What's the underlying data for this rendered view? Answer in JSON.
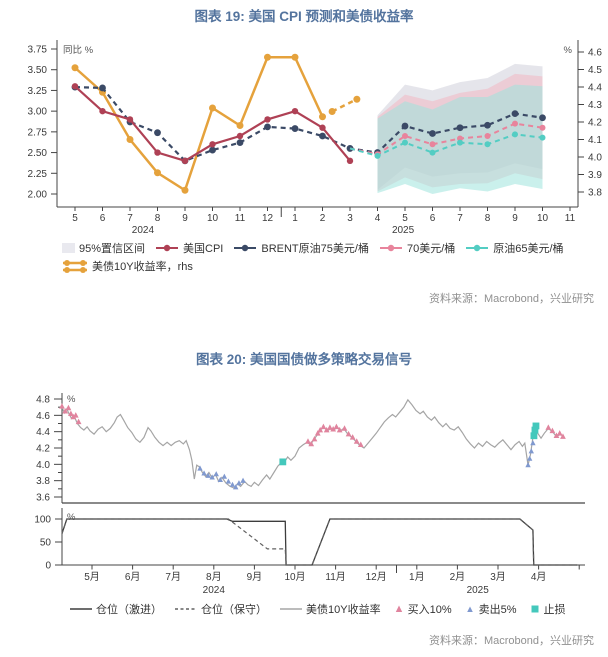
{
  "colors": {
    "title_blue": "#54749E",
    "axis": "#444444",
    "crimson": "#AF4155",
    "navy": "#3B4A66",
    "pink": "#E8849C",
    "teal": "#53CDC3",
    "orange": "#E5A23C",
    "band_gray": "#D4D4DE",
    "band_pink": "#F4B3C0",
    "band_teal": "#9FE4DC",
    "band_legend": "#E9E9EF",
    "yield_gray": "#A5A5A5",
    "buy_pink": "#E0849E",
    "sell_blue": "#8099CF",
    "stop_teal": "#44C8BC",
    "pos_solid": "#3D3D3D",
    "pos_dashed": "#606060",
    "source_gray": "#909090"
  },
  "chart_data": {
    "c19": {
      "type": "line",
      "title": "图表 19: 美国 CPI 预测和美债收益率",
      "source": "资料来源：Macrobond，兴业研究",
      "left_axis": {
        "label": "同比 %",
        "min": 2.0,
        "max": 3.75,
        "step": 0.25
      },
      "right_axis": {
        "label": "%",
        "min": 3.8,
        "max": 4.6,
        "step": 0.1
      },
      "x_labels": [
        "5",
        "6",
        "7",
        "8",
        "9",
        "10",
        "11",
        "12",
        "1",
        "2",
        "3",
        "4",
        "5",
        "6",
        "7",
        "8",
        "9",
        "10",
        "11"
      ],
      "year_labels": [
        {
          "text": "2024",
          "index": 2.47
        },
        {
          "text": "2025",
          "index": 11.93
        }
      ],
      "band": {
        "x_indices": [
          11,
          12,
          13,
          14,
          15,
          16,
          17
        ],
        "gray_lo": [
          2.05,
          2.32,
          2.21,
          2.25,
          2.26,
          2.37,
          2.3
        ],
        "gray_hi": [
          2.95,
          3.32,
          3.25,
          3.35,
          3.4,
          3.57,
          3.54
        ],
        "pink_lo": [
          2.03,
          2.2,
          2.08,
          2.12,
          2.13,
          2.25,
          2.18
        ],
        "pink_hi": [
          2.93,
          3.2,
          3.12,
          3.22,
          3.27,
          3.45,
          3.42
        ],
        "teal_lo": [
          2.01,
          2.12,
          2.0,
          2.07,
          2.03,
          2.12,
          2.06
        ],
        "teal_hi": [
          2.91,
          3.12,
          3.02,
          3.17,
          3.17,
          3.32,
          3.3
        ]
      },
      "series": [
        {
          "id": "ust10y",
          "name": "美债10Y收益率，rhs",
          "colorKey": "orange",
          "style": "solid",
          "axis": "right",
          "width": 2.5,
          "dot": 3.5,
          "x": [
            0,
            1,
            2,
            3,
            4,
            5,
            6,
            7,
            8,
            9
          ],
          "y": [
            4.51,
            4.37,
            4.1,
            3.91,
            3.81,
            4.28,
            4.18,
            4.57,
            4.57,
            4.23
          ]
        },
        {
          "id": "ust10y_fcst",
          "name": "美债10Y收益率（虚线段）",
          "colorKey": "orange",
          "style": "dashed",
          "axis": "right",
          "width": 2.5,
          "dot": 3.5,
          "x": [
            9.35,
            10.25
          ],
          "y": [
            4.26,
            4.33
          ]
        },
        {
          "id": "brent75",
          "name": "BRENT原油75美元/桶",
          "colorKey": "navy",
          "style": "dashed",
          "axis": "left",
          "width": 2.2,
          "dot": 3.4,
          "x": [
            0,
            1,
            2,
            3,
            4,
            5,
            6,
            7,
            8,
            9,
            10,
            11,
            12,
            13,
            14,
            15,
            16,
            17
          ],
          "y": [
            3.29,
            3.28,
            2.87,
            2.74,
            2.4,
            2.53,
            2.62,
            2.81,
            2.79,
            2.7,
            2.55,
            2.5,
            2.82,
            2.73,
            2.8,
            2.83,
            2.97,
            2.92
          ]
        },
        {
          "id": "oil70",
          "name": "70美元/桶",
          "colorKey": "pink",
          "style": "dashed",
          "axis": "left",
          "width": 2,
          "dot": 3,
          "skip_first_marker": true,
          "x": [
            10,
            11,
            12,
            13,
            14,
            15,
            16,
            17
          ],
          "y": [
            2.55,
            2.48,
            2.7,
            2.6,
            2.67,
            2.7,
            2.85,
            2.8
          ]
        },
        {
          "id": "oil65",
          "name": "原油65美元/桶",
          "colorKey": "teal",
          "style": "dashed",
          "axis": "left",
          "width": 2,
          "dot": 3,
          "skip_first_marker": true,
          "x": [
            10,
            11,
            12,
            13,
            14,
            15,
            16,
            17
          ],
          "y": [
            2.55,
            2.46,
            2.62,
            2.5,
            2.62,
            2.6,
            2.72,
            2.68
          ]
        },
        {
          "id": "cpi",
          "name": "美国CPI",
          "colorKey": "crimson",
          "style": "solid",
          "axis": "left",
          "width": 2.2,
          "dot": 3.2,
          "x": [
            0,
            1,
            2,
            3,
            4,
            5,
            6,
            7,
            8,
            9,
            10
          ],
          "y": [
            3.3,
            3.0,
            2.9,
            2.5,
            2.4,
            2.6,
            2.7,
            2.9,
            3.0,
            2.8,
            2.4
          ]
        }
      ],
      "legend": [
        {
          "label": "95%置信区间"
        },
        {
          "label": "美国CPI"
        },
        {
          "label": "BRENT原油75美元/桶"
        },
        {
          "label": "70美元/桶"
        },
        {
          "label": "原油65美元/桶"
        }
      ],
      "legend_rhs": {
        "label": "美债10Y收益率，rhs"
      }
    },
    "c20": {
      "type": "line",
      "title": "图表 20: 美国国债做多策略交易信号",
      "source": "资料来源：Macrobond，兴业研究",
      "top_axis": {
        "label": "%",
        "min": 3.6,
        "max": 4.8,
        "step": 0.2
      },
      "bottom_axis": {
        "label": "%",
        "ticks": [
          0,
          50,
          100
        ]
      },
      "x_labels": [
        "5月",
        "6月",
        "7月",
        "8月",
        "9月",
        "10月",
        "11月",
        "12月",
        "1月",
        "2月",
        "3月",
        "4月"
      ],
      "year_labels": [
        {
          "text": "2024",
          "index": 3.0
        },
        {
          "text": "2025",
          "index": 9.5
        }
      ],
      "yield_line": [
        [
          -0.74,
          4.7
        ],
        [
          -0.68,
          4.63
        ],
        [
          -0.62,
          4.68
        ],
        [
          -0.56,
          4.61
        ],
        [
          -0.5,
          4.56
        ],
        [
          -0.44,
          4.59
        ],
        [
          -0.36,
          4.5
        ],
        [
          -0.28,
          4.45
        ],
        [
          -0.2,
          4.42
        ],
        [
          -0.12,
          4.46
        ],
        [
          -0.05,
          4.41
        ],
        [
          0.05,
          4.37
        ],
        [
          0.15,
          4.43
        ],
        [
          0.25,
          4.46
        ],
        [
          0.35,
          4.4
        ],
        [
          0.45,
          4.44
        ],
        [
          0.55,
          4.51
        ],
        [
          0.62,
          4.58
        ],
        [
          0.7,
          4.61
        ],
        [
          0.78,
          4.54
        ],
        [
          0.88,
          4.45
        ],
        [
          0.98,
          4.39
        ],
        [
          1.08,
          4.31
        ],
        [
          1.18,
          4.27
        ],
        [
          1.28,
          4.33
        ],
        [
          1.38,
          4.45
        ],
        [
          1.45,
          4.41
        ],
        [
          1.55,
          4.33
        ],
        [
          1.65,
          4.27
        ],
        [
          1.75,
          4.23
        ],
        [
          1.85,
          4.27
        ],
        [
          1.95,
          4.23
        ],
        [
          2.05,
          4.27
        ],
        [
          2.15,
          4.29
        ],
        [
          2.25,
          4.25
        ],
        [
          2.32,
          4.29
        ],
        [
          2.4,
          4.18
        ],
        [
          2.46,
          4.05
        ],
        [
          2.52,
          3.82
        ],
        [
          2.58,
          3.99
        ],
        [
          2.64,
          3.97
        ],
        [
          2.72,
          3.9
        ],
        [
          2.8,
          3.85
        ],
        [
          2.88,
          3.9
        ],
        [
          2.96,
          3.83
        ],
        [
          3.04,
          3.88
        ],
        [
          3.12,
          3.79
        ],
        [
          3.2,
          3.84
        ],
        [
          3.3,
          3.77
        ],
        [
          3.4,
          3.73
        ],
        [
          3.5,
          3.71
        ],
        [
          3.58,
          3.76
        ],
        [
          3.66,
          3.73
        ],
        [
          3.76,
          3.79
        ],
        [
          3.84,
          3.75
        ],
        [
          3.92,
          3.73
        ],
        [
          4.0,
          3.78
        ],
        [
          4.1,
          3.74
        ],
        [
          4.2,
          3.81
        ],
        [
          4.3,
          3.87
        ],
        [
          4.38,
          3.82
        ],
        [
          4.48,
          3.9
        ],
        [
          4.58,
          3.98
        ],
        [
          4.66,
          4.02
        ],
        [
          4.74,
          4.03
        ],
        [
          4.82,
          4.09
        ],
        [
          4.9,
          4.05
        ],
        [
          5.0,
          4.1
        ],
        [
          5.1,
          4.2
        ],
        [
          5.2,
          4.24
        ],
        [
          5.3,
          4.27
        ],
        [
          5.38,
          4.24
        ],
        [
          5.46,
          4.3
        ],
        [
          5.56,
          4.37
        ],
        [
          5.64,
          4.43
        ],
        [
          5.72,
          4.45
        ],
        [
          5.8,
          4.41
        ],
        [
          5.88,
          4.44
        ],
        [
          5.96,
          4.42
        ],
        [
          6.04,
          4.46
        ],
        [
          6.12,
          4.41
        ],
        [
          6.2,
          4.44
        ],
        [
          6.3,
          4.37
        ],
        [
          6.4,
          4.33
        ],
        [
          6.5,
          4.28
        ],
        [
          6.6,
          4.23
        ],
        [
          6.7,
          4.2
        ],
        [
          6.8,
          4.26
        ],
        [
          6.9,
          4.32
        ],
        [
          7.0,
          4.38
        ],
        [
          7.1,
          4.45
        ],
        [
          7.2,
          4.52
        ],
        [
          7.3,
          4.57
        ],
        [
          7.4,
          4.61
        ],
        [
          7.48,
          4.58
        ],
        [
          7.58,
          4.64
        ],
        [
          7.68,
          4.7
        ],
        [
          7.78,
          4.79
        ],
        [
          7.88,
          4.73
        ],
        [
          7.98,
          4.66
        ],
        [
          8.08,
          4.62
        ],
        [
          8.16,
          4.65
        ],
        [
          8.26,
          4.58
        ],
        [
          8.36,
          4.54
        ],
        [
          8.44,
          4.58
        ],
        [
          8.54,
          4.51
        ],
        [
          8.64,
          4.46
        ],
        [
          8.72,
          4.5
        ],
        [
          8.82,
          4.44
        ],
        [
          8.92,
          4.42
        ],
        [
          9.02,
          4.46
        ],
        [
          9.12,
          4.39
        ],
        [
          9.22,
          4.31
        ],
        [
          9.32,
          4.25
        ],
        [
          9.42,
          4.2
        ],
        [
          9.52,
          4.26
        ],
        [
          9.62,
          4.22
        ],
        [
          9.72,
          4.28
        ],
        [
          9.82,
          4.24
        ],
        [
          9.92,
          4.21
        ],
        [
          10.02,
          4.26
        ],
        [
          10.12,
          4.3
        ],
        [
          10.22,
          4.24
        ],
        [
          10.32,
          4.18
        ],
        [
          10.42,
          4.24
        ],
        [
          10.52,
          4.28
        ],
        [
          10.6,
          4.22
        ],
        [
          10.66,
          4.26
        ],
        [
          10.74,
          3.99
        ],
        [
          10.8,
          4.12
        ],
        [
          10.86,
          4.33
        ],
        [
          10.92,
          4.45
        ],
        [
          10.98,
          4.38
        ],
        [
          11.06,
          4.32
        ],
        [
          11.14,
          4.38
        ],
        [
          11.24,
          4.44
        ],
        [
          11.34,
          4.4
        ],
        [
          11.44,
          4.34
        ],
        [
          11.54,
          4.37
        ],
        [
          11.62,
          4.33
        ]
      ],
      "signals": {
        "buy": {
          "label": "买入10%",
          "points": [
            [
              -0.74,
              4.71
            ],
            [
              -0.66,
              4.65
            ],
            [
              -0.58,
              4.69
            ],
            [
              -0.52,
              4.62
            ],
            [
              -0.46,
              4.58
            ],
            [
              -0.4,
              4.6
            ],
            [
              -0.33,
              4.52
            ],
            [
              5.32,
              4.28
            ],
            [
              5.4,
              4.25
            ],
            [
              5.48,
              4.31
            ],
            [
              5.56,
              4.38
            ],
            [
              5.62,
              4.42
            ],
            [
              5.7,
              4.46
            ],
            [
              5.78,
              4.42
            ],
            [
              5.86,
              4.45
            ],
            [
              5.94,
              4.43
            ],
            [
              6.02,
              4.46
            ],
            [
              6.1,
              4.42
            ],
            [
              6.22,
              4.44
            ],
            [
              6.32,
              4.37
            ],
            [
              6.42,
              4.33
            ],
            [
              6.52,
              4.28
            ],
            [
              6.62,
              4.24
            ],
            [
              11.24,
              4.45
            ],
            [
              11.34,
              4.41
            ],
            [
              11.44,
              4.35
            ],
            [
              11.52,
              4.38
            ],
            [
              11.6,
              4.34
            ]
          ]
        },
        "sell": {
          "label": "卖出5%",
          "points": [
            [
              2.66,
              3.95
            ],
            [
              2.76,
              3.89
            ],
            [
              2.86,
              3.86
            ],
            [
              2.96,
              3.84
            ],
            [
              3.06,
              3.88
            ],
            [
              3.16,
              3.81
            ],
            [
              3.26,
              3.85
            ],
            [
              3.36,
              3.79
            ],
            [
              3.46,
              3.75
            ],
            [
              3.54,
              3.72
            ],
            [
              3.62,
              3.77
            ],
            [
              3.72,
              3.8
            ],
            [
              10.74,
              3.99
            ],
            [
              10.78,
              4.07
            ],
            [
              10.82,
              4.16
            ],
            [
              10.86,
              4.26
            ]
          ]
        },
        "stop": {
          "label": "止损",
          "points": [
            [
              4.7,
              4.03
            ],
            [
              10.885,
              4.35
            ],
            [
              10.91,
              4.42
            ],
            [
              10.935,
              4.47
            ]
          ]
        }
      },
      "positions": {
        "aggressive": {
          "label": "仓位（激进）",
          "points": [
            [
              -0.74,
              68
            ],
            [
              -0.62,
              100
            ],
            [
              3.32,
              100
            ],
            [
              3.46,
              95
            ],
            [
              4.76,
              95
            ],
            [
              4.78,
              0
            ],
            [
              5.42,
              0
            ],
            [
              5.86,
              100
            ],
            [
              10.54,
              100
            ],
            [
              10.86,
              76
            ],
            [
              10.88,
              0
            ],
            [
              11.95,
              0
            ]
          ]
        },
        "conservative": {
          "label": "仓位（保守）",
          "points": [
            [
              -0.74,
              68
            ],
            [
              -0.62,
              100
            ],
            [
              3.36,
              100
            ],
            [
              4.32,
              35
            ],
            [
              4.76,
              35
            ],
            [
              4.78,
              0
            ],
            [
              5.42,
              0
            ],
            [
              5.86,
              100
            ],
            [
              10.54,
              100
            ],
            [
              10.86,
              76
            ],
            [
              10.88,
              0
            ],
            [
              11.95,
              0
            ]
          ]
        }
      },
      "legend": [
        {
          "label": "仓位（激进）"
        },
        {
          "label": "仓位（保守）"
        },
        {
          "label": "美债10Y收益率"
        },
        {
          "label": "买入10%"
        },
        {
          "label": "卖出5%"
        },
        {
          "label": "止损"
        }
      ]
    }
  }
}
